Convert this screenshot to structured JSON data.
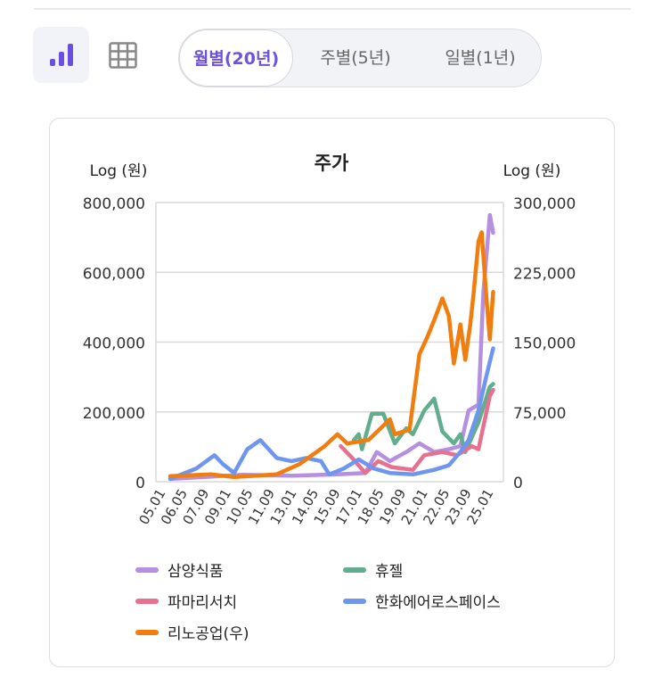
{
  "toolbar": {
    "chart_view": "bar-chart-icon",
    "table_view": "grid-icon",
    "accent": "#6c4fe0"
  },
  "periods": [
    {
      "label": "월별(20년)",
      "active": true
    },
    {
      "label": "주별(5년)",
      "active": false
    },
    {
      "label": "일별(1년)",
      "active": false
    }
  ],
  "chart_data": {
    "type": "line",
    "title": "주가",
    "ylabel_left": "Log (원)",
    "ylabel_right": "Log (원)",
    "ylim_left": [
      0,
      800000
    ],
    "ylim_right": [
      0,
      300000
    ],
    "yticks_left": [
      "0",
      "200,000",
      "400,000",
      "600,000",
      "800,000"
    ],
    "yticks_right": [
      "0",
      "75,000",
      "150,000",
      "225,000",
      "300,000"
    ],
    "xticks": [
      "05.01",
      "06.05",
      "07.09",
      "09.01",
      "10.05",
      "11.09",
      "13.01",
      "14.05",
      "15.09",
      "17.01",
      "18.05",
      "19.09",
      "21.01",
      "22.05",
      "23.09",
      "25.01"
    ],
    "grid": true,
    "legend_position": "bottom",
    "series": [
      {
        "name": "삼양식품",
        "color": "#b58fe0",
        "axis": "left",
        "x": [
          2005.6,
          2010.0,
          2013.0,
          2015.8,
          2017.5,
          2018.2,
          2019.0,
          2020.0,
          2020.8,
          2021.7,
          2022.6,
          2023.3,
          2023.8,
          2024.4,
          2024.7,
          2025.1,
          2025.3
        ],
        "y": [
          8000,
          20000,
          17000,
          21000,
          25000,
          85000,
          59000,
          85000,
          110000,
          85000,
          93000,
          102000,
          204000,
          221000,
          543000,
          764000,
          713000
        ]
      },
      {
        "name": "휴젤",
        "color": "#62ad8d",
        "axis": "left",
        "x": [
          2016.8,
          2017.1,
          2017.3,
          2017.9,
          2018.6,
          2019.3,
          2020.0,
          2020.4,
          2021.1,
          2021.7,
          2022.2,
          2022.9,
          2023.3,
          2023.6,
          2024.4,
          2025.1,
          2025.3
        ],
        "y": [
          119000,
          136000,
          93000,
          195000,
          195000,
          110000,
          153000,
          136000,
          204000,
          238000,
          144000,
          110000,
          136000,
          85000,
          170000,
          272000,
          280000
        ]
      },
      {
        "name": "파마리서치",
        "color": "#e8708f",
        "axis": "left",
        "x": [
          2016.0,
          2016.7,
          2017.5,
          2018.3,
          2019.1,
          2020.4,
          2021.1,
          2022.2,
          2023.1,
          2024.0,
          2024.4,
          2025.1,
          2025.3
        ],
        "y": [
          102000,
          68000,
          25000,
          59000,
          42000,
          34000,
          76000,
          85000,
          76000,
          102000,
          93000,
          246000,
          263000
        ]
      },
      {
        "name": "한화에어로스페이스",
        "color": "#6f96ee",
        "axis": "left",
        "x": [
          2005.6,
          2007.2,
          2008.3,
          2008.8,
          2009.5,
          2010.3,
          2011.1,
          2012.1,
          2013.0,
          2013.9,
          2014.8,
          2015.3,
          2016.2,
          2017.1,
          2018.0,
          2019.0,
          2020.4,
          2021.7,
          2022.6,
          2023.3,
          2023.8,
          2024.4,
          2024.9,
          2025.3
        ],
        "y": [
          8000,
          38000,
          76000,
          51000,
          25000,
          93000,
          119000,
          68000,
          59000,
          68000,
          59000,
          21000,
          38000,
          64000,
          38000,
          25000,
          21000,
          34000,
          47000,
          85000,
          119000,
          204000,
          306000,
          382000
        ]
      },
      {
        "name": "리노공업(우)",
        "color": "#f27d0f",
        "axis": "right",
        "x": [
          2005.6,
          2008.1,
          2009.5,
          2012.1,
          2013.5,
          2015.0,
          2015.8,
          2016.4,
          2017.7,
          2019.0,
          2019.3,
          2020.2,
          2020.8,
          2021.3,
          2021.8,
          2022.2,
          2022.6,
          2022.9,
          2023.3,
          2023.6,
          2023.9,
          2024.1,
          2024.4,
          2024.6,
          2024.9,
          2025.1,
          2025.3
        ],
        "y": [
          6000,
          8000,
          5000,
          8000,
          19000,
          38000,
          51000,
          41000,
          45000,
          67000,
          51000,
          56000,
          137000,
          156000,
          178000,
          197000,
          178000,
          127000,
          169000,
          131000,
          169000,
          201000,
          258000,
          268000,
          194000,
          153000,
          204000
        ]
      }
    ]
  }
}
